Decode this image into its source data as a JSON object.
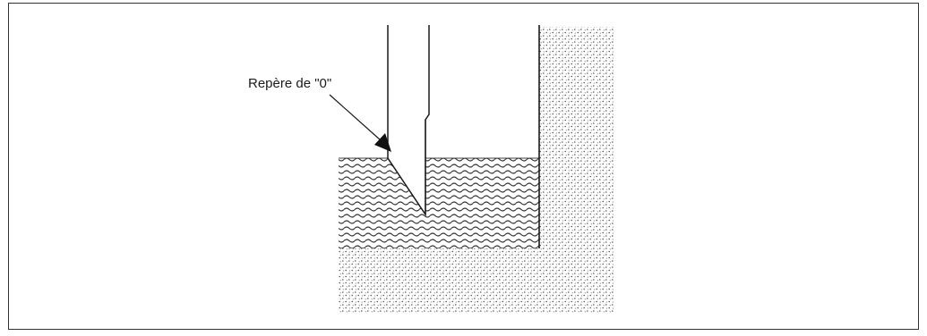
{
  "diagram": {
    "zero_mark_label": "Repère de \"0\""
  },
  "colors": {
    "frame": "#333333",
    "ink": "#1a1a1a",
    "dots": "#4a4a4a",
    "waves": "#333333",
    "background": "#ffffff"
  }
}
